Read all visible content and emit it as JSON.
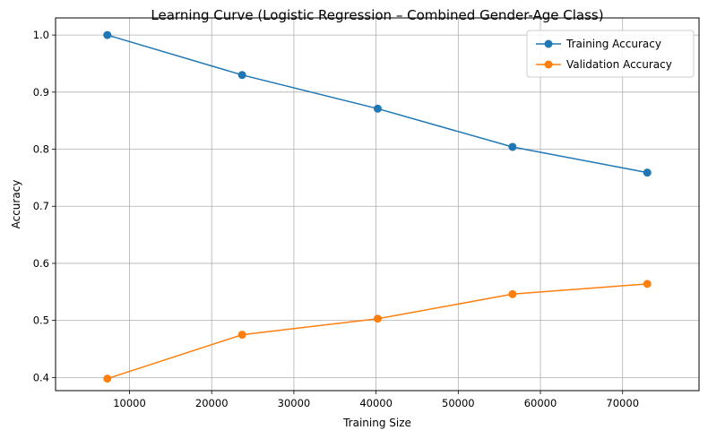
{
  "chart_data": {
    "type": "line",
    "title": "Learning Curve (Logistic Regression – Combined Gender-Age Class)",
    "xlabel": "Training Size",
    "ylabel": "Accuracy",
    "x": [
      7300,
      23700,
      40200,
      56600,
      73000
    ],
    "series": [
      {
        "name": "Training Accuracy",
        "color": "#1f77b4",
        "values": [
          1.0,
          0.93,
          0.871,
          0.804,
          0.759
        ]
      },
      {
        "name": "Validation Accuracy",
        "color": "#ff7f0e",
        "values": [
          0.398,
          0.475,
          0.503,
          0.546,
          0.564
        ]
      }
    ],
    "xlim": [
      1000,
      79300
    ],
    "ylim": [
      0.377,
      1.03
    ],
    "xticks": [
      10000,
      20000,
      30000,
      40000,
      50000,
      60000,
      70000
    ],
    "xtick_labels": [
      "10000",
      "20000",
      "30000",
      "40000",
      "50000",
      "60000",
      "70000"
    ],
    "yticks": [
      0.4,
      0.5,
      0.6,
      0.7,
      0.8,
      0.9,
      1.0
    ],
    "ytick_labels": [
      "0.4",
      "0.5",
      "0.6",
      "0.7",
      "0.8",
      "0.9",
      "1.0"
    ],
    "grid": true,
    "legend_position": "top-right"
  }
}
